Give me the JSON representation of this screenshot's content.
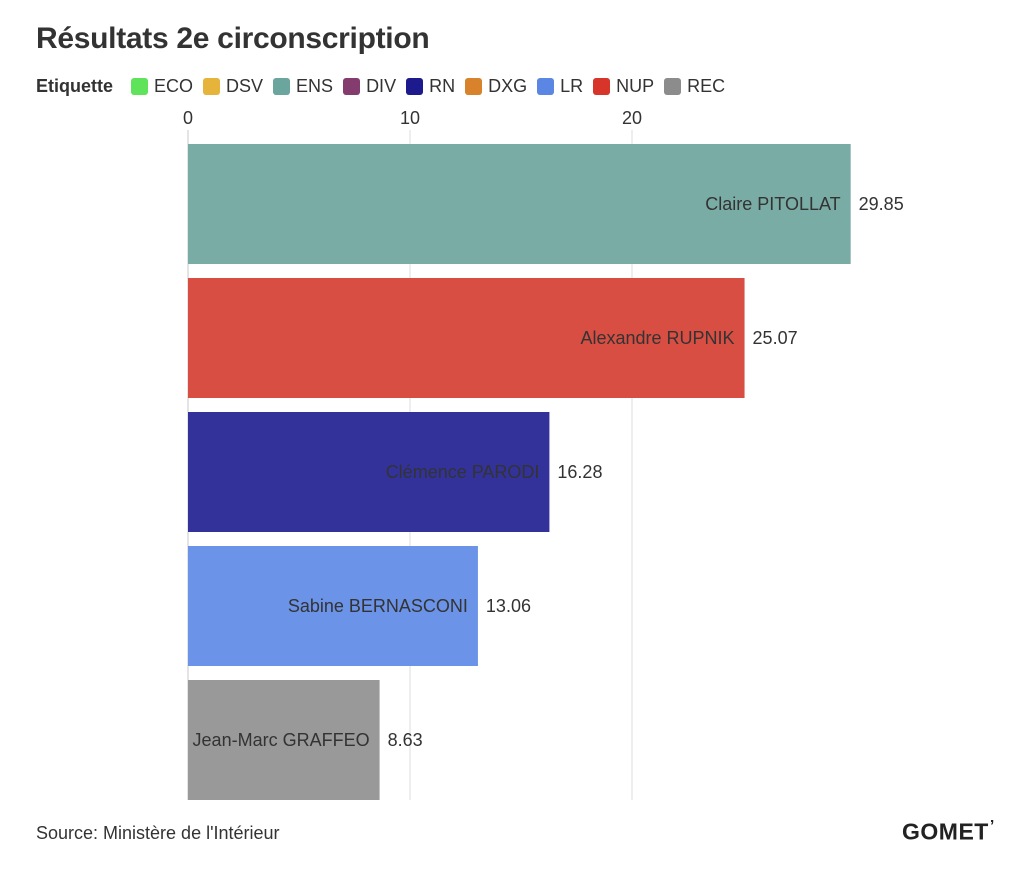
{
  "title": "Résultats 2e circonscription",
  "legend": {
    "title": "Etiquette",
    "items": [
      {
        "label": "ECO",
        "color": "#5ee35b"
      },
      {
        "label": "DSV",
        "color": "#e6b43a"
      },
      {
        "label": "ENS",
        "color": "#6aa69e"
      },
      {
        "label": "DIV",
        "color": "#843b6e"
      },
      {
        "label": "RN",
        "color": "#1c1a8c"
      },
      {
        "label": "DXG",
        "color": "#d8822c"
      },
      {
        "label": "LR",
        "color": "#5b86e4"
      },
      {
        "label": "NUP",
        "color": "#d8352a"
      },
      {
        "label": "REC",
        "color": "#8c8c8c"
      }
    ]
  },
  "chart_data": {
    "type": "bar",
    "orientation": "horizontal",
    "title": "Résultats 2e circonscription",
    "xlabel": "",
    "ylabel": "",
    "xlim": [
      0,
      30
    ],
    "x_ticks": [
      0,
      10,
      20
    ],
    "x_tick_labels": [
      "0",
      "10",
      "20"
    ],
    "grid": true,
    "categories": [
      "Claire PITOLLAT",
      "Alexandre RUPNIK",
      "Clémence PARODI",
      "Sabine BERNASCONI",
      "Jean-Marc GRAFFEO"
    ],
    "values": [
      29.85,
      25.07,
      16.28,
      13.06,
      8.63
    ],
    "value_labels": [
      "29.85",
      "25.07",
      "16.28",
      "13.06",
      "8.63"
    ],
    "parties": [
      "ENS",
      "NUP",
      "RN",
      "LR",
      "REC"
    ],
    "colors": [
      "#7aaca6",
      "#d84e43",
      "#33329b",
      "#6b93e7",
      "#999999"
    ]
  },
  "source": "Source: Ministère de l'Intérieur",
  "logo": {
    "text": "GOMET",
    "mark": "’"
  }
}
